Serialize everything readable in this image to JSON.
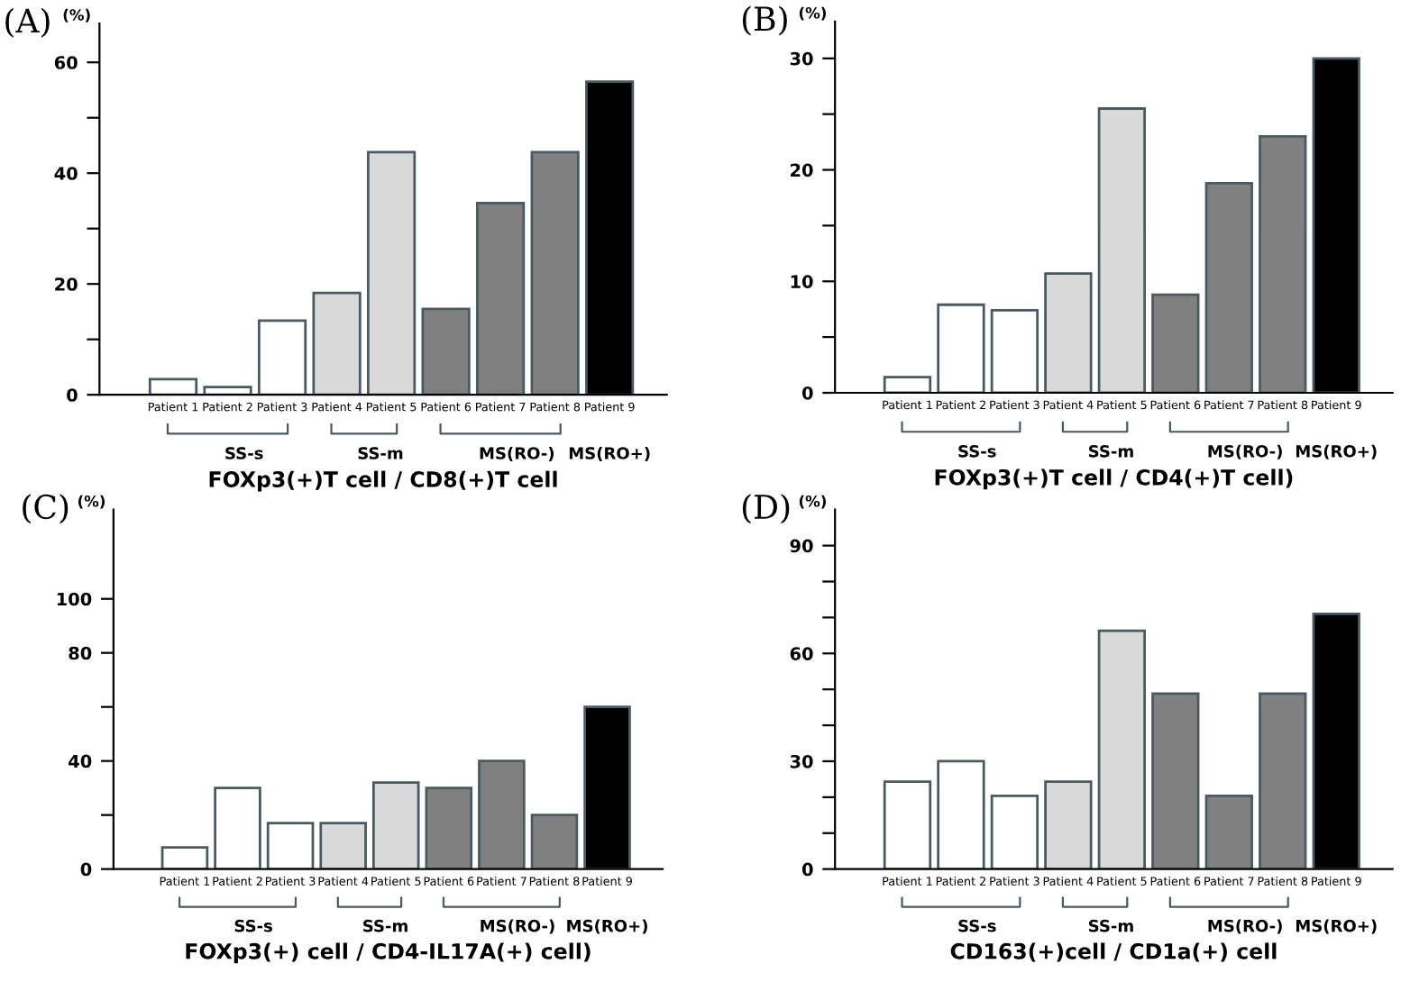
{
  "chart_data": [
    {
      "type": "bar",
      "title": "(A)",
      "ylabel": "(%)",
      "xlabel": "FOXp3(+)T cell / CD8(+)T cell",
      "categories": [
        "Patient 1",
        "Patient 2",
        "Patient 3",
        "Patient 4",
        "Patient 5",
        "Patient 6",
        "Patient 7",
        "Patient 8",
        "Patient 9"
      ],
      "values": [
        2.8,
        1.4,
        13.4,
        18.4,
        43.8,
        15.5,
        34.6,
        43.8,
        56.5
      ],
      "colors": [
        "#ffffff",
        "#ffffff",
        "#ffffff",
        "#d9d9d9",
        "#d9d9d9",
        "#808080",
        "#808080",
        "#808080",
        "#000000"
      ],
      "ylim": [
        0,
        67
      ],
      "yticks": [
        0,
        {
          "value": 10,
          "label": null
        },
        20,
        {
          "value": 30,
          "label": null
        },
        40,
        {
          "value": 50,
          "label": null
        },
        60
      ],
      "annotations": [
        "SS-s",
        "SS-m",
        "MS(RO-)",
        "MS(RO+)"
      ],
      "grid": false,
      "legend": false
    },
    {
      "type": "bar",
      "title": "(B)",
      "ylabel": "(%)",
      "xlabel": "FOXp3(+)T cell / CD4(+)T cell)",
      "categories": [
        "Patient 1",
        "Patient 2",
        "Patient 3",
        "Patient 4",
        "Patient 5",
        "Patient 6",
        "Patient 7",
        "Patient 8",
        "Patient 9"
      ],
      "values": [
        1.4,
        7.9,
        7.4,
        10.7,
        25.5,
        8.8,
        18.8,
        23.0,
        30.0
      ],
      "colors": [
        "#ffffff",
        "#ffffff",
        "#ffffff",
        "#d9d9d9",
        "#d9d9d9",
        "#808080",
        "#808080",
        "#808080",
        "#000000"
      ],
      "ylim": [
        0,
        33.3
      ],
      "yticks": [
        0,
        {
          "value": 5,
          "label": null
        },
        10,
        {
          "value": 15,
          "label": null
        },
        20,
        {
          "value": 25,
          "label": null
        },
        30
      ],
      "annotations": [
        "SS-s",
        "SS-m",
        "MS(RO-)",
        "MS(RO+)"
      ],
      "grid": false,
      "legend": false
    },
    {
      "type": "bar",
      "title": "(C)",
      "ylabel": "(%)",
      "xlabel": "FOXp3(+) cell / CD4-IL17A(+) cell)",
      "categories": [
        "Patient 1",
        "Patient 2",
        "Patient 3",
        "Patient 4",
        "Patient 5",
        "Patient 6",
        "Patient 7",
        "Patient 8",
        "Patient 9"
      ],
      "values": [
        8,
        30,
        17,
        17,
        32,
        30,
        40,
        20,
        60
      ],
      "colors": [
        "#ffffff",
        "#ffffff",
        "#ffffff",
        "#d9d9d9",
        "#d9d9d9",
        "#808080",
        "#808080",
        "#808080",
        "#000000"
      ],
      "ylim": [
        0,
        133
      ],
      "yticks": [
        0,
        {
          "value": 20,
          "label": null
        },
        40,
        {
          "value": 60,
          "label": null
        },
        80,
        100
      ],
      "annotations": [
        "SS-s",
        "SS-m",
        "MS(RO-)",
        "MS(RO+)"
      ],
      "grid": false,
      "legend": false
    },
    {
      "type": "bar",
      "title": "(D)",
      "ylabel": "(%)",
      "xlabel": "CD163(+)cell / CD1a(+) cell",
      "categories": [
        "Patient 1",
        "Patient 2",
        "Patient 3",
        "Patient 4",
        "Patient 5",
        "Patient 6",
        "Patient 7",
        "Patient 8",
        "Patient 9"
      ],
      "values": [
        24.3,
        30,
        20.4,
        24.3,
        66.3,
        48.8,
        20.4,
        48.8,
        71
      ],
      "colors": [
        "#ffffff",
        "#ffffff",
        "#ffffff",
        "#d9d9d9",
        "#d9d9d9",
        "#808080",
        "#808080",
        "#808080",
        "#000000"
      ],
      "ylim": [
        0,
        100
      ],
      "yticks": [
        0,
        {
          "value": 10,
          "label": null
        },
        {
          "value": 20,
          "label": null
        },
        30,
        {
          "value": 40,
          "label": null
        },
        {
          "value": 50,
          "label": null
        },
        60,
        {
          "value": 70,
          "label": null
        },
        {
          "value": 80,
          "label": null
        },
        90
      ],
      "annotations": [
        "SS-s",
        "SS-m",
        "MS(RO-)",
        "MS(RO+)"
      ],
      "grid": false,
      "legend": false
    }
  ]
}
